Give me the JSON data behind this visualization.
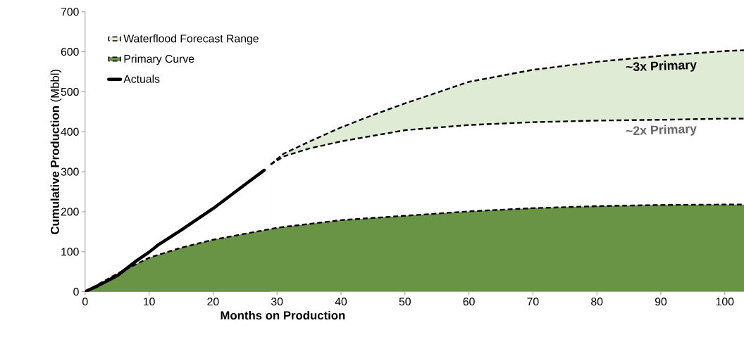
{
  "chart_data": {
    "type": "area",
    "xlabel": "Months on Production",
    "ylabel": "**Cumulative Production** (Mbbl)",
    "xlim": [
      0,
      103
    ],
    "ylim": [
      0,
      700
    ],
    "xticks": [
      0,
      10,
      20,
      30,
      40,
      50,
      60,
      70,
      80,
      90,
      100
    ],
    "yticks": [
      0,
      100,
      200,
      300,
      400,
      500,
      600,
      700
    ],
    "grid": false,
    "legend": "top left",
    "line_style": "dashed",
    "series": [
      {
        "name": "Waterflood Forecast Range",
        "color": "#e0ebd6",
        "x": [
          29,
          31,
          35,
          40,
          45,
          50,
          60,
          70,
          80,
          90,
          100,
          103
        ],
        "values": [
          318,
          345,
          375,
          411,
          442,
          471,
          525,
          555,
          575,
          590,
          602,
          604
        ]
      },
      {
        "color": "#ffffff",
        "x": [
          29,
          31,
          35,
          40,
          45,
          50,
          60,
          70,
          80,
          90,
          100,
          103
        ],
        "values": [
          318,
          338,
          358,
          376,
          390,
          404,
          417,
          424,
          428,
          430,
          433,
          433
        ]
      },
      {
        "name": "Primary Curve",
        "color": "#6a9445",
        "x": [
          0,
          5,
          10,
          15,
          20,
          30,
          40,
          50,
          60,
          70,
          80,
          90,
          100,
          103
        ],
        "values": [
          0,
          45,
          85,
          110,
          130,
          160,
          179,
          190,
          201,
          209,
          214,
          217,
          218,
          218
        ]
      },
      {
        "name": "Actuals",
        "type": "line",
        "color": "#000000",
        "line_style": "solid",
        "x": [
          0,
          2,
          5,
          8,
          10,
          11.5,
          15,
          20,
          25,
          28
        ],
        "values": [
          0,
          15,
          40,
          77,
          99,
          118,
          154,
          208,
          268,
          304
        ]
      }
    ],
    "annotations": [
      {
        "text": "~3x Primary",
        "x": 90,
        "y": 590
      },
      {
        "text": "~2x Primary",
        "x": 90,
        "y": 430
      }
    ]
  }
}
